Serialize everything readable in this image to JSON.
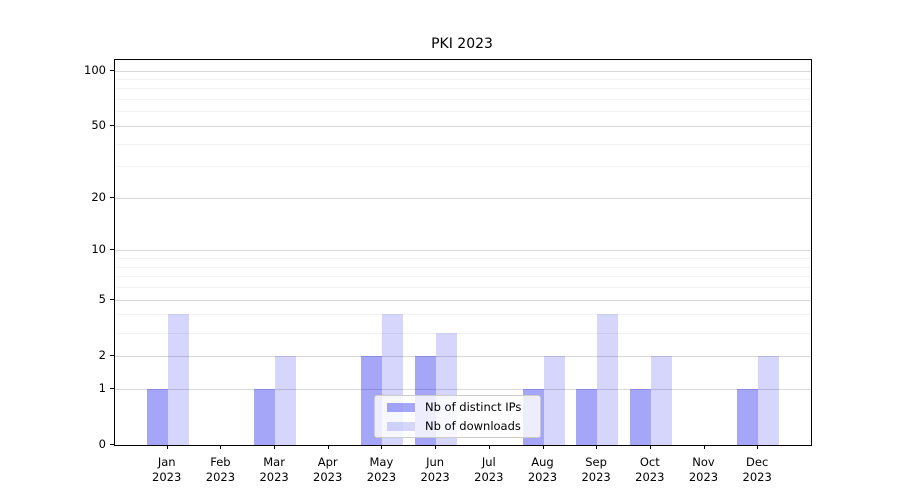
{
  "chart_data": {
    "type": "bar",
    "title": "PKI 2023",
    "categories": [
      "Jan",
      "Feb",
      "Mar",
      "Apr",
      "May",
      "Jun",
      "Jul",
      "Aug",
      "Sep",
      "Oct",
      "Nov",
      "Dec"
    ],
    "x_tick_line2": "2023",
    "series": [
      {
        "name": "Nb of distinct IPs",
        "color": "rgba(0,0,235,0.35)",
        "values": [
          1,
          0,
          1,
          0,
          2,
          2,
          0,
          1,
          1,
          1,
          0,
          1
        ]
      },
      {
        "name": "Nb of downloads",
        "color": "rgba(0,0,235,0.16)",
        "values": [
          4,
          0,
          2,
          0,
          4,
          3,
          0,
          2,
          4,
          2,
          0,
          2
        ]
      }
    ],
    "yscale": "log1p",
    "ylim": [
      0,
      114
    ],
    "yticks_major": [
      0,
      1,
      2,
      5,
      10,
      20,
      50,
      100
    ],
    "yticks_minor": [
      3,
      4,
      6,
      7,
      8,
      9,
      30,
      40,
      60,
      70,
      80,
      90
    ],
    "grid": true,
    "legend_position": "lower center",
    "colors": {
      "grid_major": "#d8d8d8",
      "grid_minor": "#f2f2f2",
      "spine": "#000000",
      "legend_border": "#cccccc",
      "legend_background": "rgba(255,255,255,0.8)"
    }
  }
}
